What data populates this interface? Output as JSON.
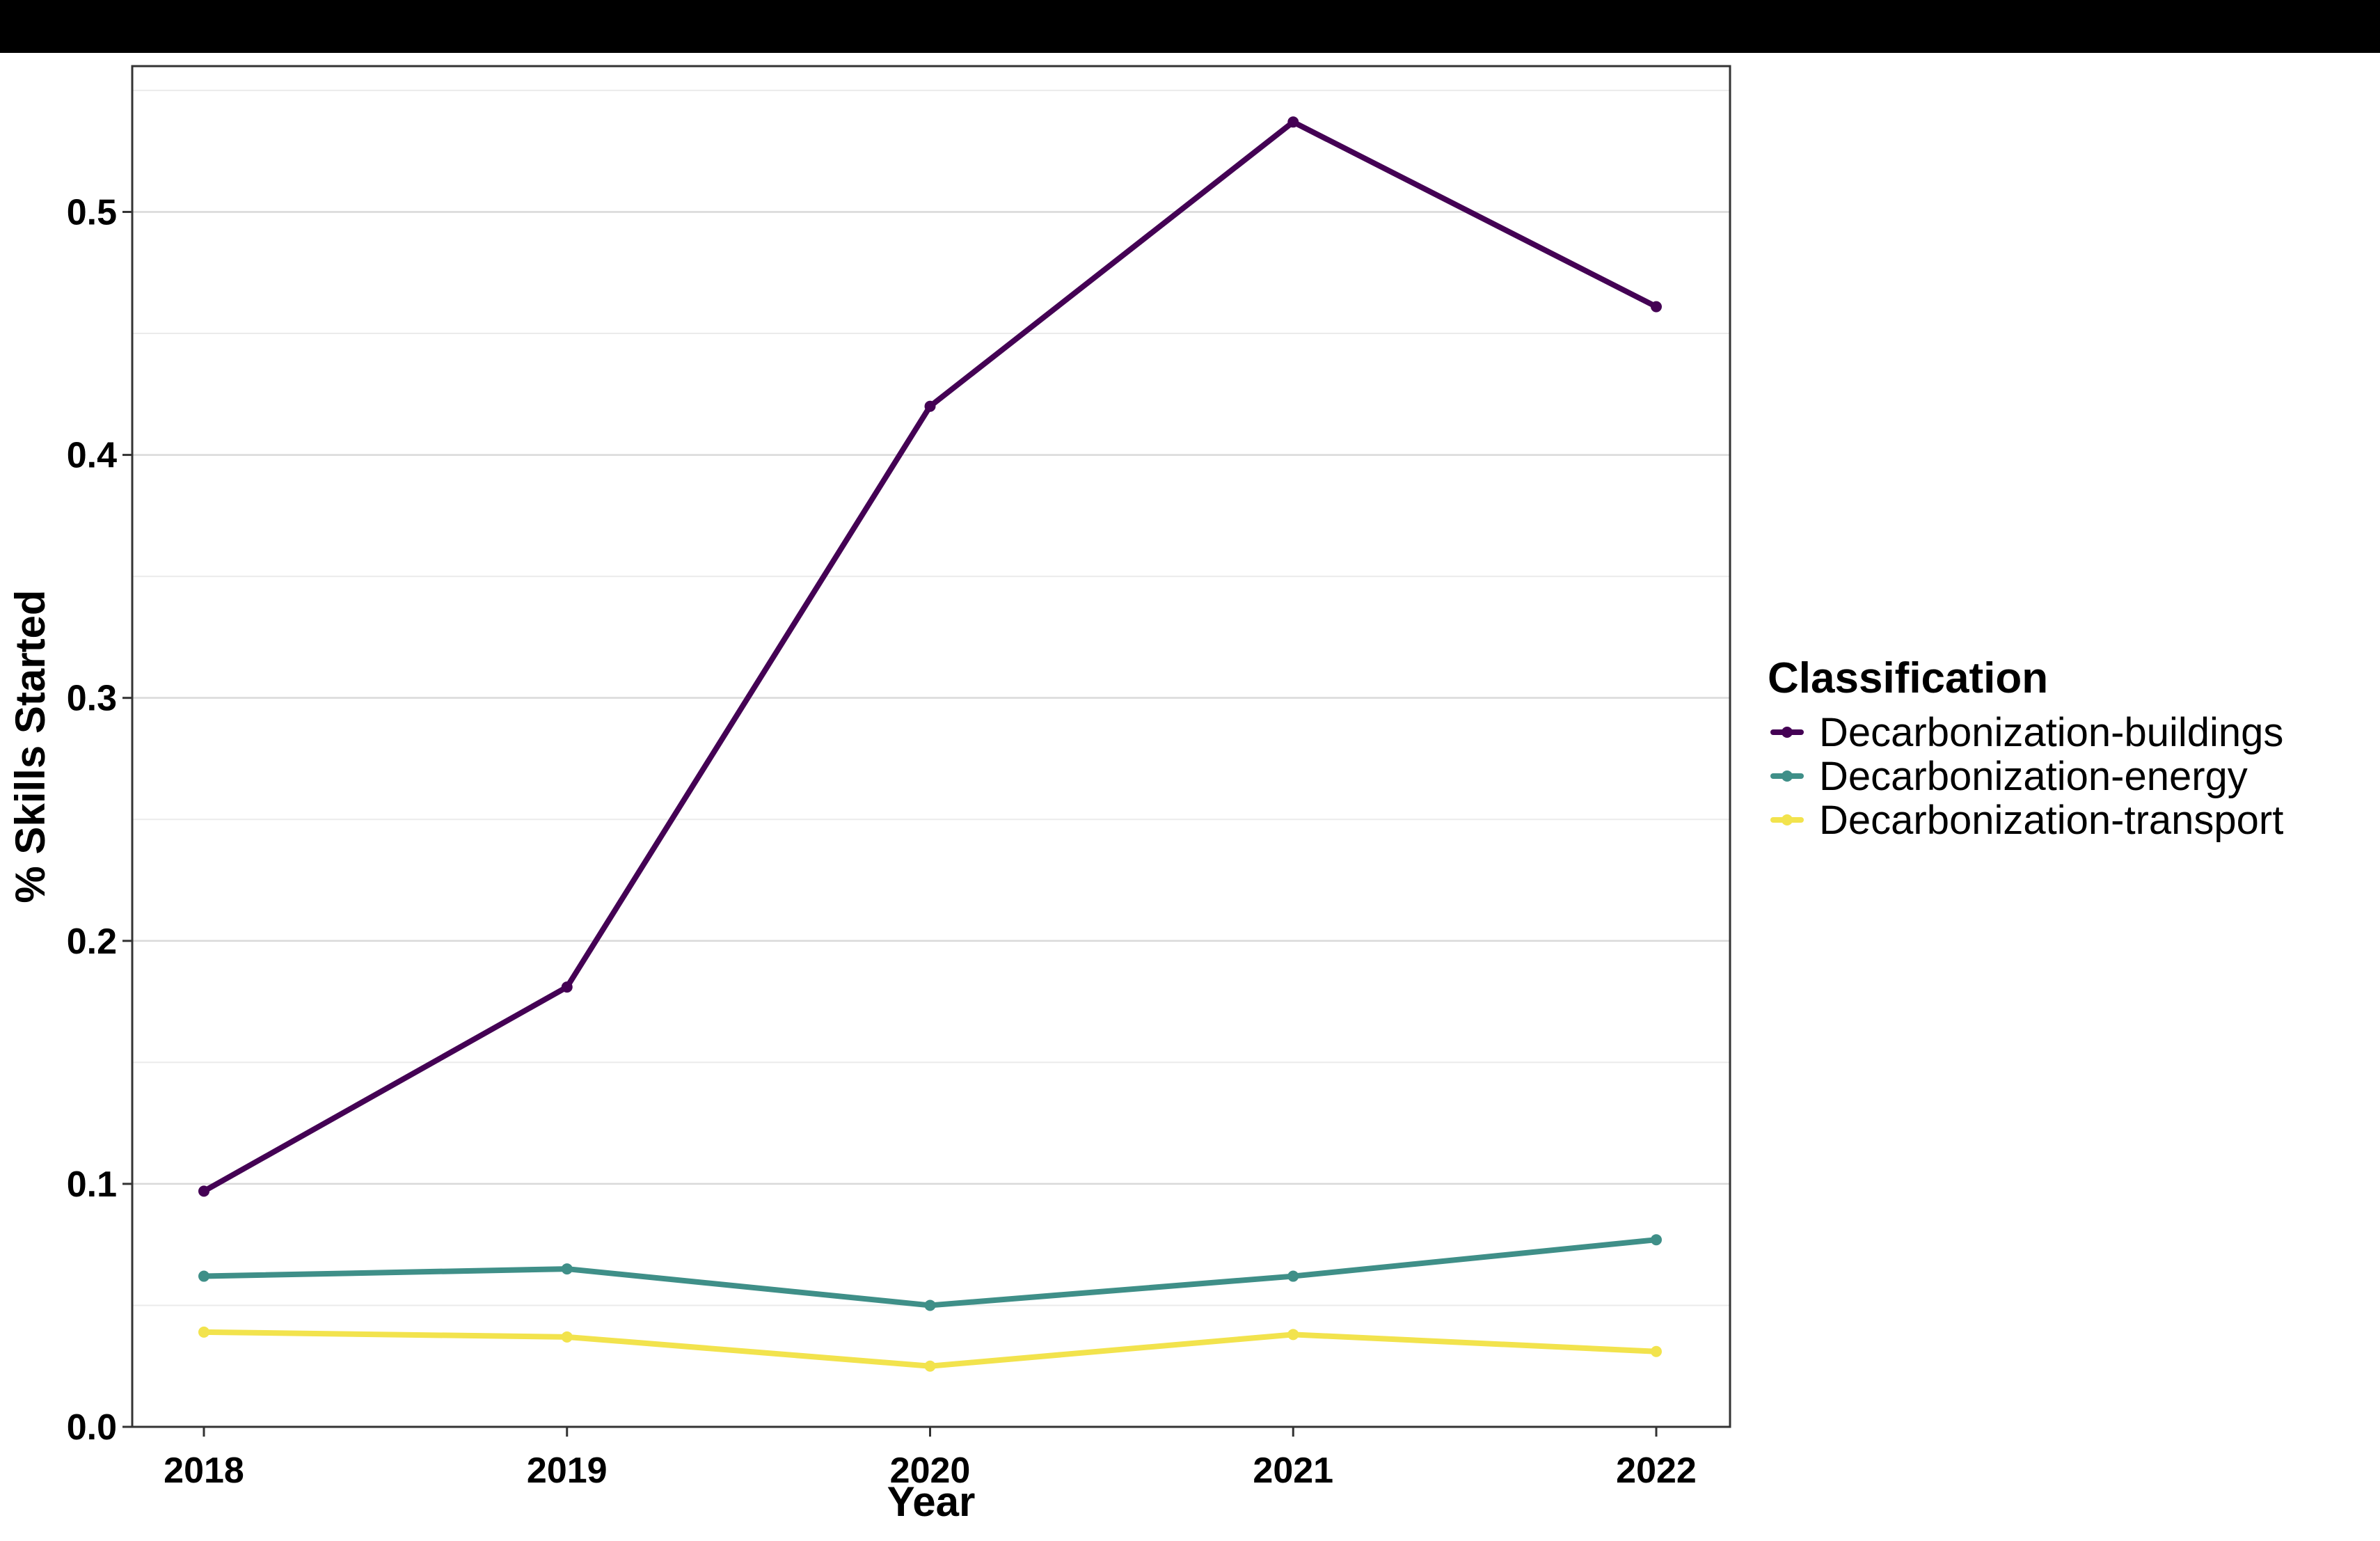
{
  "chart_data": {
    "type": "line",
    "xlabel": "Year",
    "ylabel": "% Skills Started",
    "x": [
      "2018",
      "2019",
      "2020",
      "2021",
      "2022"
    ],
    "y_ticks": [
      "0.0",
      "0.1",
      "0.2",
      "0.3",
      "0.4",
      "0.5"
    ],
    "ylim": [
      0,
      0.56
    ],
    "grid": true,
    "legend": {
      "title": "Classification",
      "position": "right"
    },
    "series": [
      {
        "name": "Decarbonization-buildings",
        "color": "#440154",
        "values": [
          0.097,
          0.181,
          0.42,
          0.537,
          0.461
        ]
      },
      {
        "name": "Decarbonization-energy",
        "color": "#3f8f88",
        "values": [
          0.062,
          0.065,
          0.05,
          0.062,
          0.077
        ]
      },
      {
        "name": "Decarbonization-transport",
        "color": "#f2e34d",
        "values": [
          0.039,
          0.037,
          0.025,
          0.038,
          0.031
        ]
      }
    ]
  }
}
